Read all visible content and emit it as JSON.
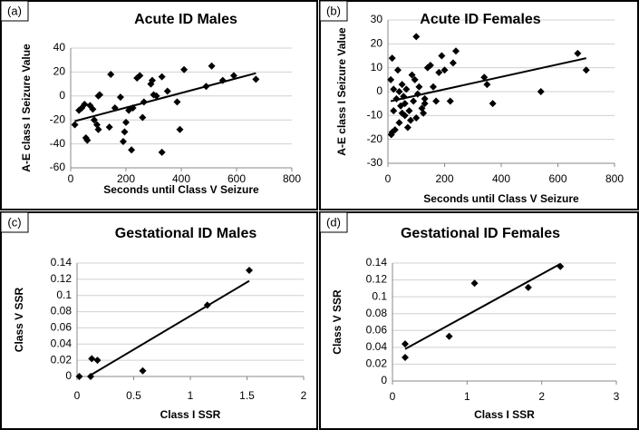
{
  "chart_data": [
    {
      "type": "scatter",
      "panel_label": "(a)",
      "title": "Acute ID Males",
      "x_label": "Seconds until Class V Seizure",
      "y_label": "A-E class I Seizure Value",
      "color": "#000000",
      "x": [
        15,
        30,
        40,
        50,
        55,
        60,
        70,
        80,
        85,
        95,
        100,
        100,
        105,
        140,
        145,
        160,
        180,
        190,
        195,
        200,
        210,
        220,
        225,
        240,
        250,
        260,
        265,
        290,
        295,
        300,
        310,
        330,
        330,
        350,
        385,
        395,
        410,
        490,
        510,
        550,
        590,
        670
      ],
      "values": [
        -24,
        -12,
        -10,
        -7,
        -35,
        -37,
        -8,
        -11,
        -20,
        -24,
        -28,
        0,
        1,
        -26,
        18,
        -10,
        -1,
        -38,
        -30,
        -22,
        -12,
        -45,
        -10,
        15,
        17,
        -18,
        -5,
        10,
        13,
        1,
        0,
        16,
        -47,
        4,
        -5,
        -28,
        22,
        8,
        25,
        13,
        17,
        14
      ],
      "trendline": {
        "x": [
          15,
          670
        ],
        "y": [
          -21,
          19
        ]
      },
      "xlim": [
        0,
        800
      ],
      "xticks": [
        0,
        200,
        400,
        600,
        800
      ],
      "ylim": [
        -60,
        40
      ],
      "yticks": [
        -60,
        -40,
        -20,
        0,
        20,
        40
      ],
      "grid": true
    },
    {
      "type": "scatter",
      "panel_label": "(b)",
      "title": "Acute ID Females",
      "x_label": "Seconds until Class V Seizure",
      "y_label": "A-E class I Seizure Value",
      "color": "#000000",
      "x": [
        10,
        12,
        15,
        15,
        20,
        20,
        25,
        30,
        35,
        40,
        40,
        45,
        50,
        50,
        55,
        60,
        60,
        65,
        70,
        75,
        80,
        85,
        90,
        95,
        100,
        100,
        105,
        110,
        120,
        125,
        130,
        130,
        140,
        150,
        160,
        170,
        180,
        190,
        200,
        220,
        230,
        240,
        340,
        350,
        370,
        540,
        670,
        700
      ],
      "values": [
        5,
        -18,
        14,
        -17,
        -8,
        1,
        -16,
        -3,
        9,
        0,
        -13,
        -6,
        -9,
        3,
        -2,
        -10,
        -5,
        1,
        -15,
        -8,
        -12,
        7,
        -4,
        5,
        23,
        -11,
        -1,
        2,
        -7,
        -9,
        -3,
        -5,
        10,
        11,
        2,
        -4,
        8,
        15,
        9,
        -4,
        12,
        17,
        6,
        3,
        -5,
        0,
        16,
        9
      ],
      "trendline": {
        "x": [
          10,
          700
        ],
        "y": [
          -4,
          14
        ]
      },
      "xlim": [
        0,
        800
      ],
      "xticks": [
        0,
        200,
        400,
        600,
        800
      ],
      "ylim": [
        -30,
        30
      ],
      "yticks": [
        -30,
        -20,
        -10,
        0,
        10,
        20,
        30
      ],
      "grid": true
    },
    {
      "type": "scatter",
      "panel_label": "(c)",
      "title": "Gestational ID Males",
      "x_label": "Class I SSR",
      "y_label": "Class V SSR",
      "color": "#000000",
      "x": [
        0.02,
        0.12,
        0.13,
        0.18,
        0.58,
        1.15,
        1.52
      ],
      "values": [
        0,
        0,
        0.022,
        0.02,
        0.007,
        0.088,
        0.131
      ],
      "trendline": {
        "x": [
          0.1,
          1.52
        ],
        "y": [
          0,
          0.118
        ]
      },
      "xlim": [
        0,
        2
      ],
      "xticks": [
        0,
        0.5,
        1,
        1.5,
        2
      ],
      "ylim": [
        0,
        0.14
      ],
      "yticks": [
        0,
        0.02,
        0.04,
        0.06,
        0.08,
        0.1,
        0.12,
        0.14
      ],
      "grid": true
    },
    {
      "type": "scatter",
      "panel_label": "(d)",
      "title": "Gestational ID Females",
      "x_label": "Class I SSR",
      "y_label": "Class V SSR",
      "color": "#000000",
      "x": [
        0.17,
        0.17,
        0.76,
        1.1,
        1.82,
        2.25
      ],
      "values": [
        0.044,
        0.028,
        0.053,
        0.116,
        0.111,
        0.136
      ],
      "trendline": {
        "x": [
          0.17,
          2.25
        ],
        "y": [
          0.038,
          0.139
        ]
      },
      "xlim": [
        0,
        3
      ],
      "xticks": [
        0,
        1,
        2,
        3
      ],
      "ylim": [
        0,
        0.14
      ],
      "yticks": [
        0,
        0.02,
        0.04,
        0.06,
        0.08,
        0.1,
        0.12,
        0.14
      ],
      "grid": true
    }
  ]
}
